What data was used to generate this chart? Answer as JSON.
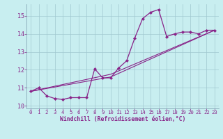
{
  "xlabel": "Windchill (Refroidissement éolien,°C)",
  "background_color": "#c8eef0",
  "grid_color": "#a0c8d0",
  "line_color": "#882288",
  "xlim": [
    -0.5,
    23.5
  ],
  "ylim": [
    9.85,
    15.65
  ],
  "yticks": [
    10,
    11,
    12,
    13,
    14,
    15
  ],
  "xticks": [
    0,
    1,
    2,
    3,
    4,
    5,
    6,
    7,
    8,
    9,
    10,
    11,
    12,
    13,
    14,
    15,
    16,
    17,
    18,
    19,
    20,
    21,
    22,
    23
  ],
  "series1_x": [
    0,
    1,
    2,
    3,
    4,
    5,
    6,
    7,
    8,
    9,
    10,
    11,
    12,
    13,
    14,
    15,
    16,
    17,
    18,
    19,
    20,
    21,
    22,
    23
  ],
  "series1_y": [
    10.8,
    11.0,
    10.55,
    10.4,
    10.35,
    10.45,
    10.45,
    10.45,
    12.05,
    11.55,
    11.55,
    12.1,
    12.5,
    13.75,
    14.85,
    15.2,
    15.35,
    13.85,
    14.0,
    14.1,
    14.1,
    14.0,
    14.2,
    14.2
  ],
  "series2_x": [
    0,
    10,
    23
  ],
  "series2_y": [
    10.8,
    11.6,
    14.2
  ],
  "series3_x": [
    0,
    10,
    23
  ],
  "series3_y": [
    10.8,
    11.75,
    14.2
  ]
}
